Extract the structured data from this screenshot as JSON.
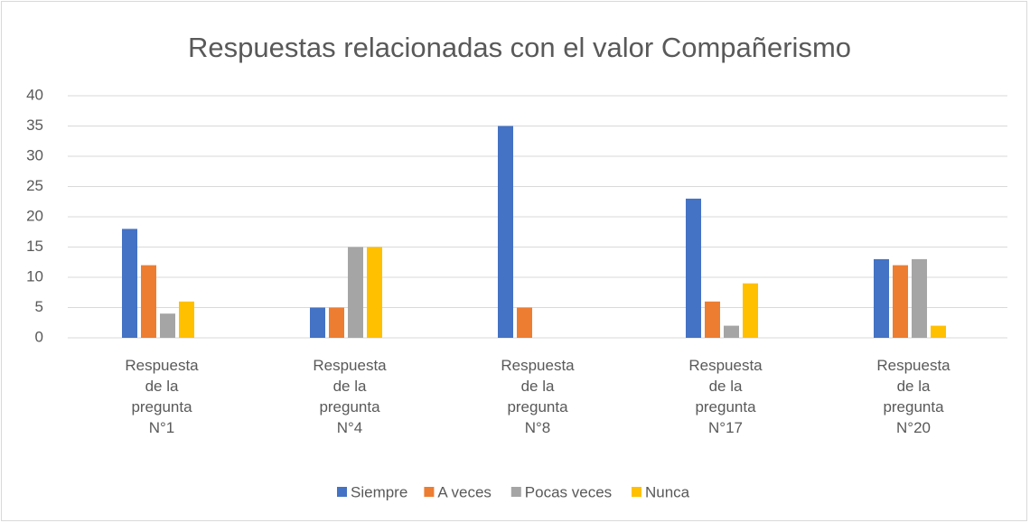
{
  "chart_data": {
    "type": "bar",
    "title": "Respuestas relacionadas con el valor Compañerismo",
    "categories": [
      "Respuesta de la pregunta N°1",
      "Respuesta de la pregunta N°4",
      "Respuesta de la pregunta N°8",
      "Respuesta de la pregunta N°17",
      "Respuesta de la pregunta N°20"
    ],
    "series": [
      {
        "name": "Siempre",
        "color": "#4472c4",
        "values": [
          18,
          5,
          35,
          23,
          13
        ]
      },
      {
        "name": "A veces",
        "color": "#ed7d31",
        "values": [
          12,
          5,
          5,
          6,
          12
        ]
      },
      {
        "name": "Pocas veces",
        "color": "#a5a5a5",
        "values": [
          4,
          15,
          0,
          2,
          13
        ]
      },
      {
        "name": "Nunca",
        "color": "#ffc000",
        "values": [
          6,
          15,
          0,
          9,
          2
        ]
      }
    ],
    "ylim": [
      0,
      40
    ],
    "yticks": [
      0,
      5,
      10,
      15,
      20,
      25,
      30,
      35,
      40
    ],
    "grid": true,
    "legend": "bottom"
  }
}
